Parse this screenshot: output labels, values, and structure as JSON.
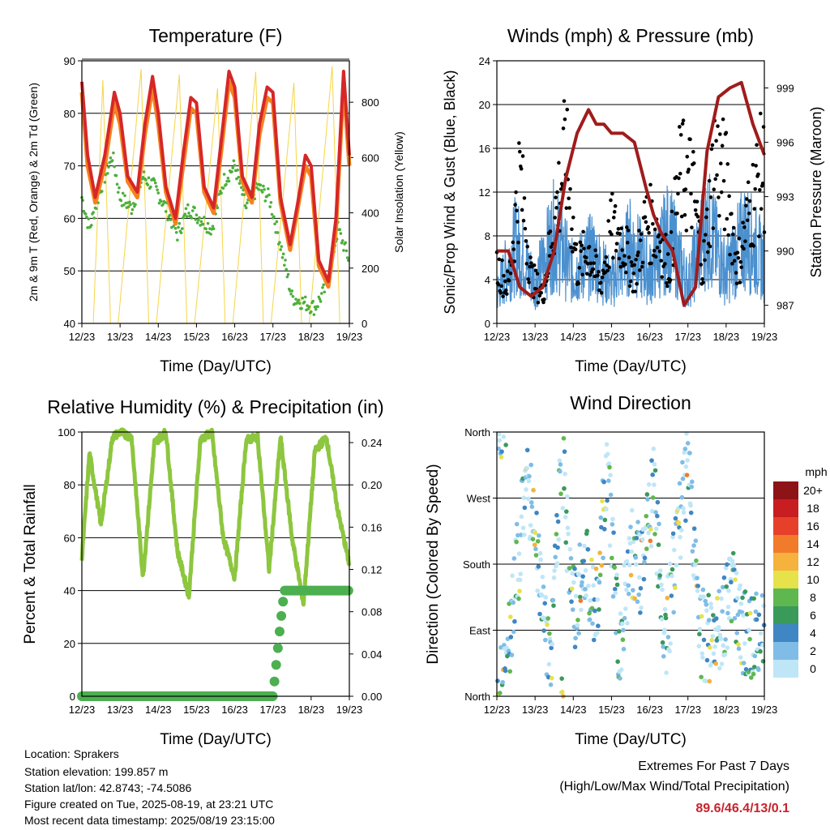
{
  "charts": {
    "temperature": {
      "title": "Temperature (F)",
      "ylabel_left": "2m & 9m T (Red, Orange) & 2m Td (Green)",
      "ylabel_right": "Solar Insolation (Yellow)",
      "xlabel": "Time (Day/UTC)"
    },
    "winds": {
      "title": "Winds (mph) & Pressure (mb)",
      "ylabel_left": "Sonic/Prop Wind & Gust (Blue, Black)",
      "ylabel_right": "Station Pressure (Maroon)",
      "xlabel": "Time (Day/UTC)"
    },
    "humidity": {
      "title": "Relative Humidity (%) & Precipitation (in)",
      "ylabel_left": "Percent & Total Rainfall",
      "xlabel": "Time (Day/UTC)"
    },
    "wind_direction": {
      "title": "Wind Direction",
      "ylabel_left": "Direction (Colored By Speed)",
      "xlabel": "Time (Day/UTC)",
      "legend_title": "mph"
    }
  },
  "chart_data": [
    {
      "id": "temperature",
      "type": "line",
      "x_ticks": [
        "12/23",
        "13/23",
        "14/23",
        "15/23",
        "16/23",
        "17/23",
        "18/23",
        "19/23"
      ],
      "y_left": {
        "range": [
          40,
          90
        ],
        "ticks": [
          40,
          50,
          60,
          70,
          80,
          90
        ]
      },
      "y_right": {
        "range": [
          0,
          950
        ],
        "ticks": [
          0,
          200,
          400,
          600,
          800
        ]
      },
      "colors": {
        "t2m": "#d62728",
        "t9m": "#f5821f",
        "td": "#4caf3c",
        "solar": "#f5d547"
      },
      "series": [
        {
          "name": "2m T",
          "x": [
            0,
            0.15,
            0.35,
            0.6,
            0.85,
            1.0,
            1.2,
            1.45,
            1.65,
            1.85,
            2.0,
            2.2,
            2.45,
            2.65,
            2.85,
            3.0,
            3.2,
            3.45,
            3.65,
            3.85,
            4.0,
            4.2,
            4.45,
            4.65,
            4.85,
            5.0,
            5.2,
            5.45,
            5.65,
            5.85,
            6.0,
            6.2,
            6.45,
            6.65,
            6.85,
            7.0
          ],
          "values": [
            86,
            72,
            64,
            72,
            84,
            80,
            68,
            65,
            78,
            87,
            80,
            66,
            60,
            72,
            83,
            82,
            66,
            62,
            75,
            88,
            85,
            68,
            64,
            78,
            85,
            84,
            64,
            55,
            63,
            72,
            70,
            52,
            48,
            60,
            88,
            72
          ]
        },
        {
          "name": "9m T",
          "x": [
            0,
            0.15,
            0.35,
            0.6,
            0.85,
            1.0,
            1.2,
            1.45,
            1.65,
            1.85,
            2.0,
            2.2,
            2.45,
            2.65,
            2.85,
            3.0,
            3.2,
            3.45,
            3.65,
            3.85,
            4.0,
            4.2,
            4.45,
            4.65,
            4.85,
            5.0,
            5.2,
            5.45,
            5.65,
            5.85,
            6.0,
            6.2,
            6.45,
            6.65,
            6.85,
            7.0
          ],
          "values": [
            84,
            70,
            63,
            70,
            82,
            78,
            67,
            64,
            76,
            85,
            78,
            65,
            59,
            70,
            81,
            80,
            65,
            61,
            73,
            86,
            83,
            67,
            63,
            76,
            83,
            82,
            63,
            54,
            62,
            70,
            68,
            51,
            47,
            58,
            86,
            70
          ]
        },
        {
          "name": "2m Td",
          "x": [
            0,
            0.2,
            0.5,
            0.8,
            1.0,
            1.3,
            1.6,
            1.9,
            2.2,
            2.5,
            2.8,
            3.1,
            3.4,
            3.7,
            4.0,
            4.3,
            4.6,
            4.9,
            5.2,
            5.5,
            5.8,
            6.1,
            6.4,
            6.7,
            7.0
          ],
          "values": [
            64,
            58,
            66,
            72,
            64,
            62,
            68,
            66,
            62,
            57,
            62,
            60,
            58,
            67,
            70,
            62,
            66,
            64,
            55,
            45,
            44,
            43,
            47,
            58,
            52
          ]
        },
        {
          "name": "Solar",
          "x": [
            0.3,
            0.55,
            0.75,
            0.95,
            1.55,
            1.75,
            1.95,
            2.55,
            2.75,
            2.95,
            3.55,
            3.75,
            3.95,
            4.55,
            4.75,
            4.95,
            5.55,
            5.75,
            5.95,
            6.55,
            6.75,
            6.95
          ],
          "values": [
            0,
            880,
            0,
            0,
            920,
            0,
            0,
            900,
            0,
            0,
            850,
            0,
            0,
            910,
            0,
            0,
            870,
            0,
            0,
            930,
            0,
            0
          ]
        }
      ]
    },
    {
      "id": "winds",
      "type": "line",
      "x_ticks": [
        "12/23",
        "13/23",
        "14/23",
        "15/23",
        "16/23",
        "17/23",
        "18/23",
        "19/23"
      ],
      "y_left": {
        "range": [
          0,
          24
        ],
        "ticks": [
          0,
          4,
          8,
          12,
          16,
          20,
          24
        ]
      },
      "y_right": {
        "range": [
          986,
          1000.5
        ],
        "ticks": [
          987,
          990,
          993,
          996,
          999
        ]
      },
      "colors": {
        "wind": "#4a90cf",
        "gust": "#000000",
        "pressure": "#a01c1c"
      },
      "series": [
        {
          "name": "Wind",
          "x": [
            0,
            0.5,
            1.0,
            1.5,
            2.0,
            2.5,
            3.0,
            3.5,
            4.0,
            4.5,
            5.0,
            5.5,
            6.0,
            6.5,
            7.0
          ],
          "values": [
            3,
            8,
            4,
            9,
            5,
            7,
            4,
            8,
            5,
            9,
            4,
            10,
            5,
            9,
            6
          ]
        },
        {
          "name": "Gust",
          "x": [
            0,
            0.3,
            0.6,
            0.9,
            1.2,
            1.5,
            1.8,
            2.1,
            2.4,
            2.7,
            3.0,
            3.3,
            3.6,
            3.9,
            4.2,
            4.5,
            4.8,
            5.1,
            5.4,
            5.7,
            6.0,
            6.3,
            6.6,
            6.9
          ],
          "values": [
            6,
            4,
            16,
            5,
            3,
            11,
            18,
            6,
            8,
            4,
            10,
            9,
            5,
            11,
            10,
            6,
            16,
            15,
            6,
            18,
            15,
            6,
            12,
            16
          ]
        },
        {
          "name": "Pressure",
          "x": [
            0,
            0.3,
            0.6,
            0.9,
            1.2,
            1.5,
            1.8,
            2.1,
            2.4,
            2.6,
            2.8,
            3.0,
            3.3,
            3.6,
            3.9,
            4.1,
            4.3,
            4.6,
            4.9,
            5.2,
            5.5,
            5.8,
            6.1,
            6.4,
            6.7,
            7.0
          ],
          "values": [
            990,
            990,
            988,
            987.5,
            988,
            990,
            994,
            996.5,
            997.8,
            997,
            997,
            996.5,
            996.5,
            996,
            993.5,
            992,
            991,
            990,
            987,
            988,
            995.5,
            998.5,
            999,
            999.3,
            997,
            995.3
          ]
        }
      ]
    },
    {
      "id": "humidity",
      "type": "line",
      "x_ticks": [
        "12/23",
        "13/23",
        "14/23",
        "15/23",
        "16/23",
        "17/23",
        "18/23",
        "19/23"
      ],
      "y_left": {
        "range": [
          0,
          100
        ],
        "ticks": [
          0,
          20,
          40,
          60,
          80,
          100
        ]
      },
      "y_right": {
        "range": [
          0,
          0.25
        ],
        "ticks": [
          0.0,
          0.04,
          0.08,
          0.12,
          0.16,
          0.2,
          0.24
        ]
      },
      "colors": {
        "rh": "#8dc63f",
        "precip": "#4caf50"
      },
      "series": [
        {
          "name": "RH",
          "x": [
            0,
            0.2,
            0.5,
            0.8,
            1.0,
            1.3,
            1.6,
            1.9,
            2.2,
            2.5,
            2.8,
            3.1,
            3.4,
            3.7,
            4.0,
            4.3,
            4.6,
            4.9,
            5.2,
            5.5,
            5.8,
            6.1,
            6.4,
            6.7,
            7.0
          ],
          "values": [
            52,
            92,
            65,
            98,
            100,
            98,
            45,
            96,
            100,
            55,
            38,
            97,
            100,
            60,
            45,
            97,
            98,
            48,
            98,
            60,
            35,
            93,
            98,
            70,
            50
          ]
        },
        {
          "name": "Precip",
          "x": [
            0,
            5.0,
            5.1,
            5.2,
            5.3,
            5.5,
            6.0,
            6.5,
            7.0
          ],
          "values": [
            0,
            0,
            0.035,
            0.07,
            0.1,
            0.1,
            0.1,
            0.1,
            0.1
          ]
        }
      ]
    },
    {
      "id": "wind_direction",
      "type": "scatter",
      "x_ticks": [
        "12/23",
        "13/23",
        "14/23",
        "15/23",
        "16/23",
        "17/23",
        "18/23",
        "19/23"
      ],
      "y_categories": [
        "North",
        "East",
        "South",
        "West",
        "North"
      ],
      "legend_ticks": [
        "0",
        "2",
        "4",
        "6",
        "8",
        "10",
        "12",
        "14",
        "16",
        "18",
        "20+"
      ],
      "legend_colors": [
        "#bfe6f7",
        "#7fbde6",
        "#3f86c4",
        "#3a9a5a",
        "#5fb84f",
        "#e6e24a",
        "#f5b23c",
        "#f17a2b",
        "#e6402b",
        "#c81e22",
        "#8e1317"
      ],
      "series": [
        {
          "name": "Direction",
          "x": [
            0.2,
            0.5,
            0.8,
            1.1,
            1.4,
            1.7,
            2.0,
            2.3,
            2.6,
            2.9,
            3.2,
            3.5,
            3.8,
            4.1,
            4.4,
            4.7,
            5.0,
            5.3,
            5.6,
            5.9,
            6.2,
            6.5,
            6.8
          ],
          "values": [
            0.2,
            1.8,
            3.3,
            2.0,
            0.5,
            3.6,
            1.3,
            2.0,
            1.4,
            3.5,
            0.6,
            2.2,
            1.8,
            3.2,
            0.8,
            2.2,
            3.5,
            1.0,
            0.8,
            1.2,
            1.6,
            0.9,
            1.0
          ]
        }
      ]
    }
  ],
  "info": {
    "location": "Location: Sprakers",
    "elevation": "Station elevation: 199.857 m",
    "latlon": "Station lat/lon: 42.8743; -74.5086",
    "created": "Figure created on Tue, 2025-08-19, at 23:21 UTC",
    "recent": "Most recent data timestamp: 2025/08/19 23:15:00"
  },
  "extremes": {
    "title": "Extremes For Past 7 Days",
    "subtitle": "(High/Low/Max Wind/Total Precipitation)",
    "values": "89.6/46.4/13/0.1"
  }
}
